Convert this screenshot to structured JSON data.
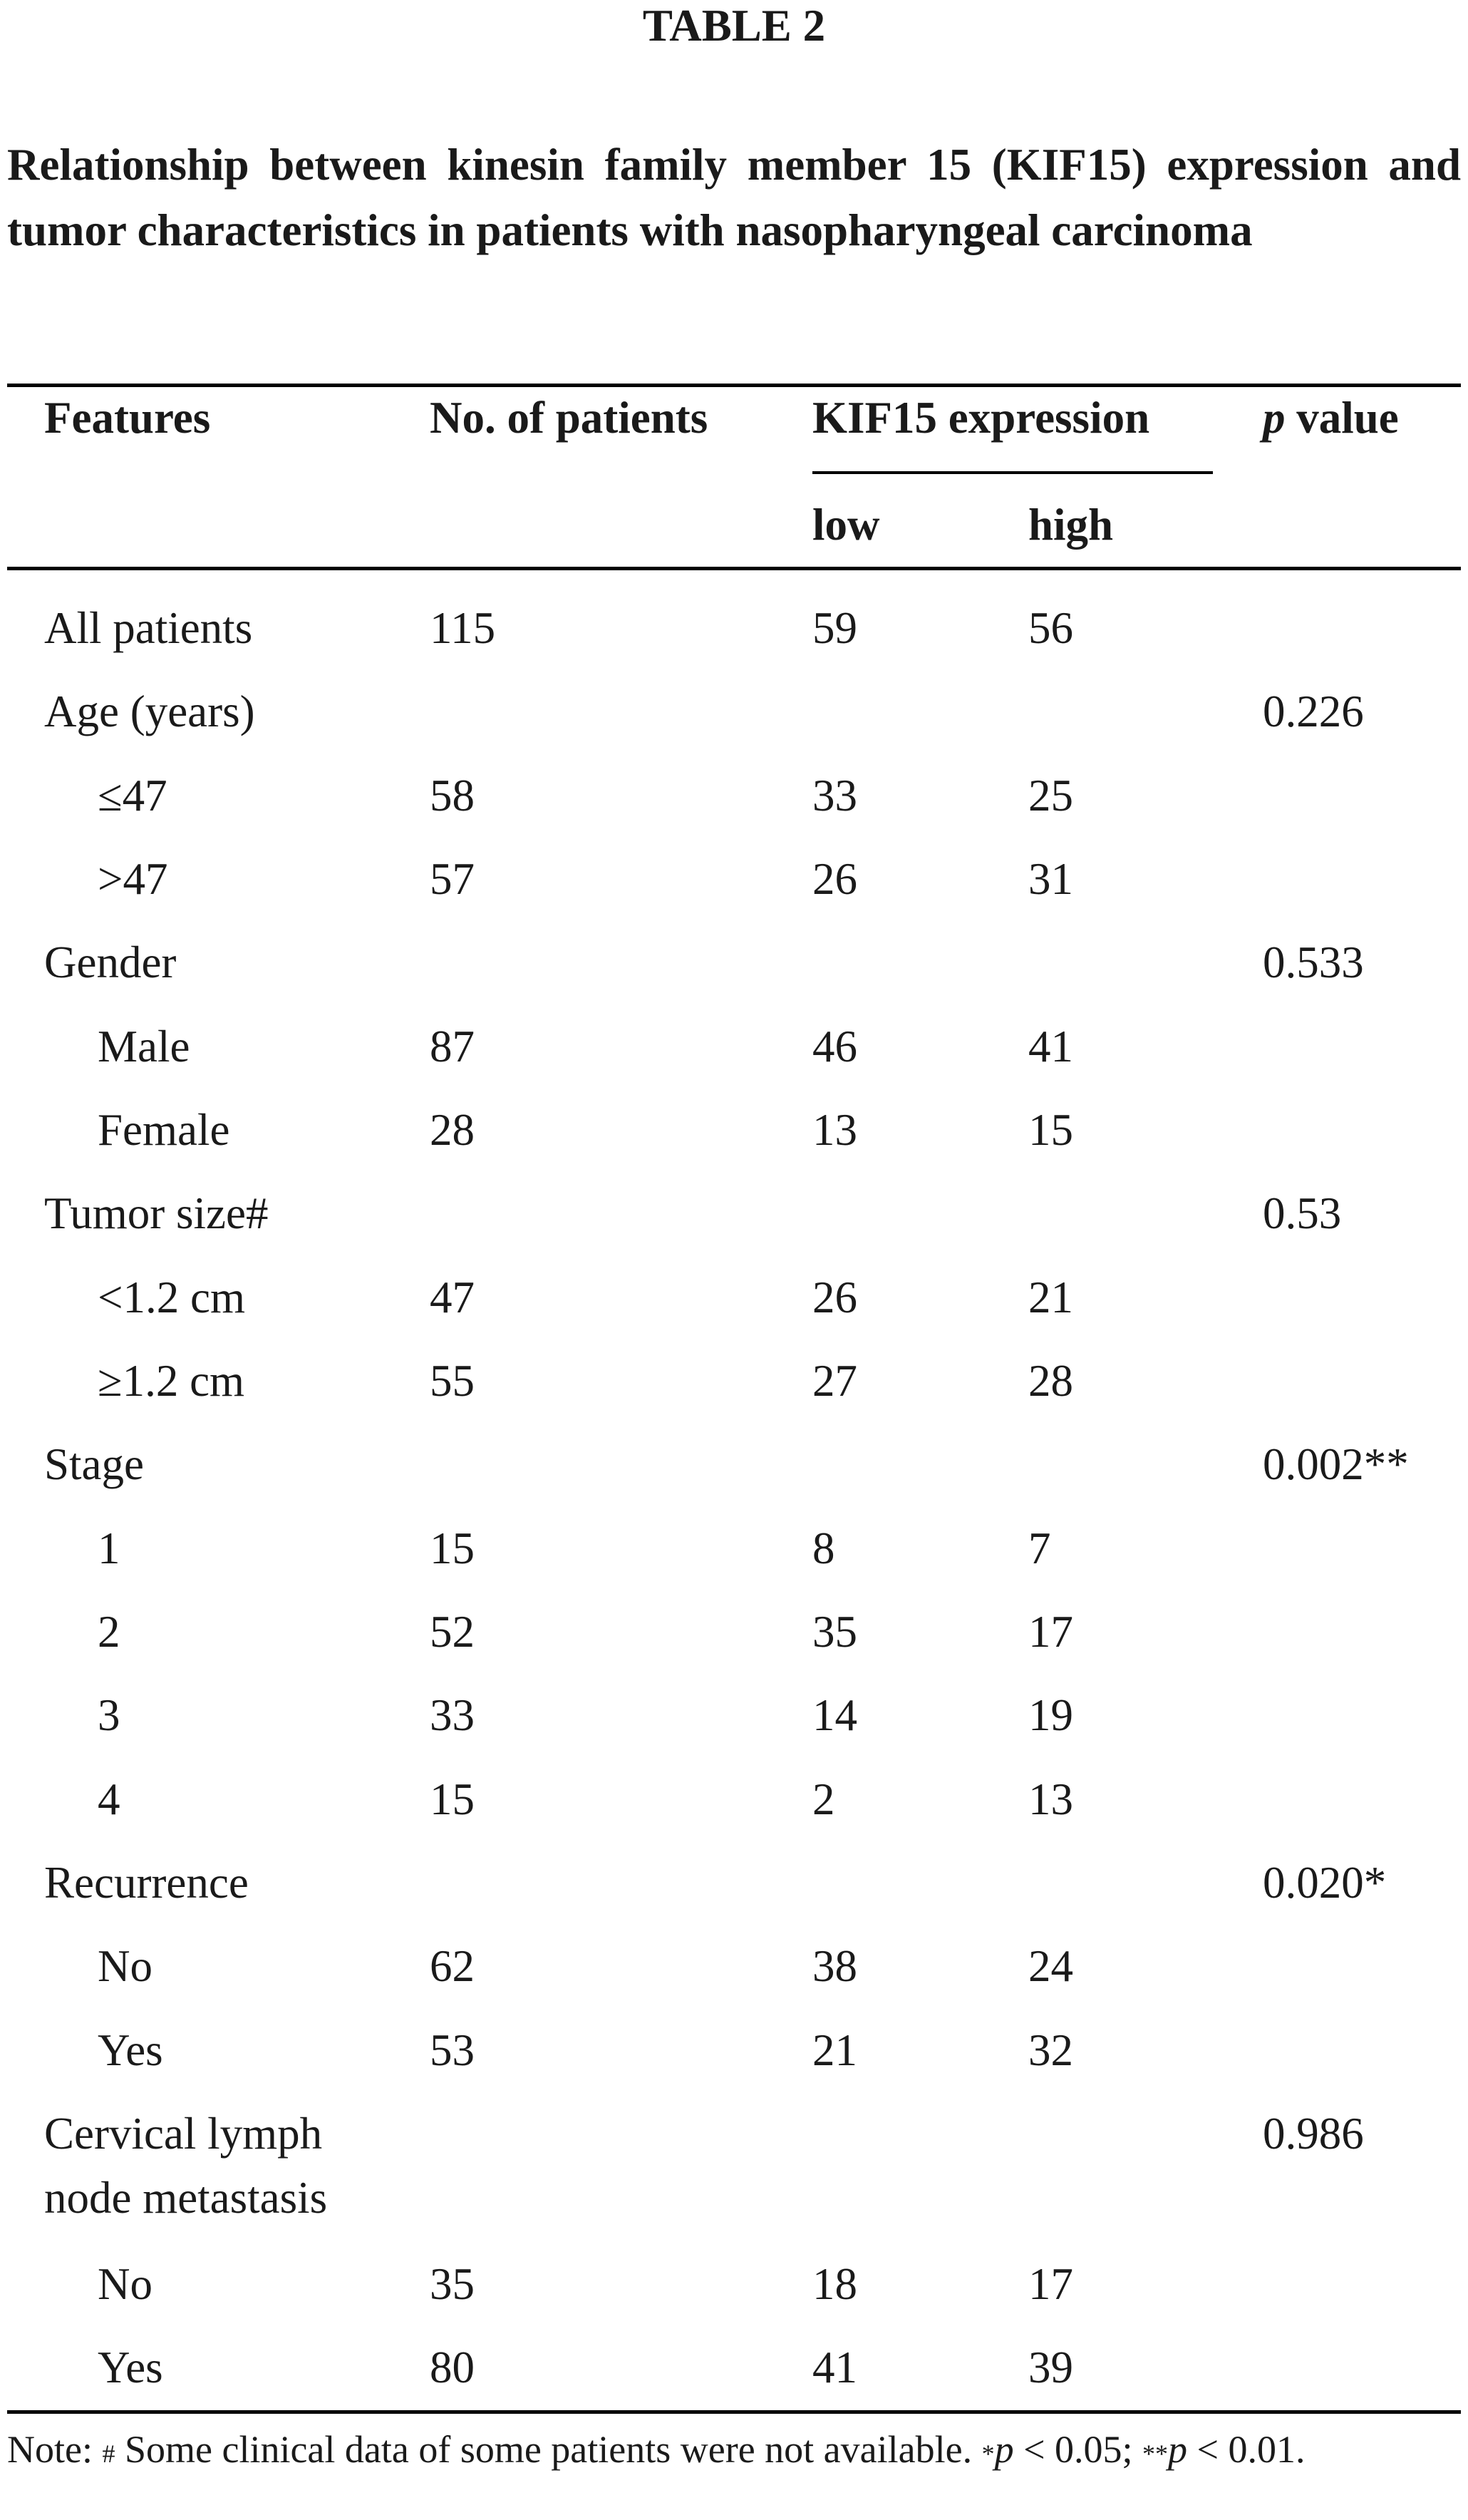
{
  "table_label": "TABLE 2",
  "caption": "Relationship between kinesin family member 15 (KIF15) expression and tumor characteristics in patients with nasopharyngeal carcinoma",
  "header": {
    "features": "Features",
    "no_patients": "No. of patients",
    "kif15": "KIF15 expression",
    "p_italic": "p",
    "p_value": " value",
    "low": "low",
    "high": "high"
  },
  "rows": [
    {
      "feature": "All patients",
      "n": "115",
      "low": "59",
      "high": "56",
      "p": ""
    },
    {
      "feature": "Age (years)",
      "n": "",
      "low": "",
      "high": "",
      "p": "0.226"
    },
    {
      "feature": "≤47",
      "n": "58",
      "low": "33",
      "high": "25",
      "p": ""
    },
    {
      "feature": ">47",
      "n": "57",
      "low": "26",
      "high": "31",
      "p": ""
    },
    {
      "feature": "Gender",
      "n": "",
      "low": "",
      "high": "",
      "p": "0.533"
    },
    {
      "feature": "Male",
      "n": "87",
      "low": "46",
      "high": "41",
      "p": ""
    },
    {
      "feature": "Female",
      "n": "28",
      "low": "13",
      "high": "15",
      "p": ""
    },
    {
      "feature": "Tumor size#",
      "n": "",
      "low": "",
      "high": "",
      "p": "0.53"
    },
    {
      "feature": "<1.2 cm",
      "n": "47",
      "low": "26",
      "high": "21",
      "p": ""
    },
    {
      "feature": "≥1.2 cm",
      "n": "55",
      "low": "27",
      "high": "28",
      "p": ""
    },
    {
      "feature": "Stage",
      "n": "",
      "low": "",
      "high": "",
      "p": "0.002**"
    },
    {
      "feature": "1",
      "n": "15",
      "low": "8",
      "high": "7",
      "p": ""
    },
    {
      "feature": "2",
      "n": "52",
      "low": "35",
      "high": "17",
      "p": ""
    },
    {
      "feature": "3",
      "n": "33",
      "low": "14",
      "high": "19",
      "p": ""
    },
    {
      "feature": "4",
      "n": "15",
      "low": "2",
      "high": "13",
      "p": ""
    },
    {
      "feature": "Recurrence",
      "n": "",
      "low": "",
      "high": "",
      "p": "0.020*"
    },
    {
      "feature": "No",
      "n": "62",
      "low": "38",
      "high": "24",
      "p": ""
    },
    {
      "feature": "Yes",
      "n": "53",
      "low": "21",
      "high": "32",
      "p": ""
    },
    {
      "feature": "Cervical lymph",
      "n": "",
      "low": "",
      "high": "",
      "p": "0.986"
    },
    {
      "feature": "node metastasis",
      "n": "",
      "low": "",
      "high": "",
      "p": ""
    },
    {
      "feature": "No",
      "n": "35",
      "low": "18",
      "high": "17",
      "p": ""
    },
    {
      "feature": "Yes",
      "n": "80",
      "low": "41",
      "high": "39",
      "p": ""
    }
  ],
  "note": {
    "lead": "Note: ",
    "hash": "#",
    "text1": " Some clinical data of some patients were not available. ",
    "star1": "*",
    "p1": "p",
    "text2": " < 0.05; ",
    "star2": "**",
    "p2": "p",
    "text3": " < 0.01."
  }
}
